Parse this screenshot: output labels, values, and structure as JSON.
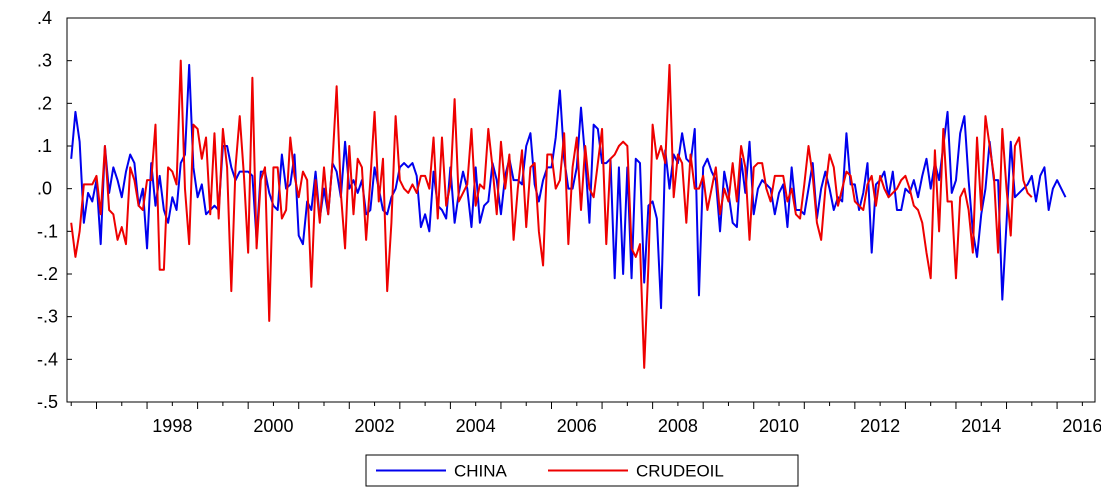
{
  "chart_data": {
    "type": "line",
    "title": "",
    "xlabel": "",
    "ylabel": "",
    "x_start": "1996-07",
    "x_end": "2016-09",
    "x_frequency": "monthly",
    "xlim": [
      "1996-06",
      "2016-10"
    ],
    "ylim": [
      -0.5,
      0.4
    ],
    "y_ticks": [
      0.4,
      0.3,
      0.2,
      0.1,
      0.0,
      -0.1,
      -0.2,
      -0.3,
      -0.4,
      -0.5
    ],
    "y_tick_labels": [
      ".4",
      ".3",
      ".2",
      ".1",
      ".0",
      "-.1",
      "-.2",
      "-.3",
      "-.4",
      "-.5"
    ],
    "x_tick_labels": [
      "1998",
      "2000",
      "2002",
      "2004",
      "2006",
      "2008",
      "2010",
      "2012",
      "2014",
      "2016"
    ],
    "x_tick_years": [
      1998,
      2000,
      2002,
      2004,
      2006,
      2008,
      2010,
      2012,
      2014,
      2016
    ],
    "grid": false,
    "legend_position": "bottom-center",
    "series": [
      {
        "name": "CHINA",
        "color": "#0000ee",
        "values": [
          0.07,
          0.18,
          0.11,
          -0.08,
          -0.01,
          -0.03,
          0.02,
          -0.13,
          0.1,
          -0.01,
          0.05,
          0.02,
          -0.02,
          0.04,
          0.08,
          0.06,
          -0.04,
          0.0,
          -0.14,
          0.06,
          -0.04,
          0.03,
          -0.05,
          -0.08,
          -0.02,
          -0.05,
          0.06,
          0.08,
          0.29,
          0.05,
          -0.02,
          0.01,
          -0.06,
          -0.05,
          -0.04,
          -0.05,
          0.1,
          0.1,
          0.05,
          0.02,
          0.04,
          0.04,
          0.04,
          0.03,
          -0.12,
          0.04,
          0.04,
          -0.01,
          -0.04,
          -0.05,
          0.08,
          0.0,
          0.01,
          0.08,
          -0.11,
          -0.13,
          -0.03,
          -0.05,
          0.04,
          -0.07,
          0.0,
          -0.06,
          0.06,
          0.04,
          -0.02,
          0.11,
          0.0,
          0.02,
          -0.01,
          0.02,
          -0.06,
          -0.05,
          0.05,
          0.0,
          -0.05,
          -0.06,
          -0.02,
          0.0,
          0.05,
          0.06,
          0.05,
          0.06,
          0.03,
          -0.09,
          -0.06,
          -0.1,
          0.04,
          -0.04,
          -0.05,
          -0.07,
          0.05,
          -0.08,
          -0.01,
          0.04,
          0.0,
          -0.09,
          0.05,
          -0.08,
          -0.04,
          -0.03,
          0.06,
          0.02,
          -0.06,
          0.03,
          0.07,
          0.02,
          0.02,
          0.01,
          0.1,
          0.13,
          0.01,
          -0.03,
          0.02,
          0.05,
          0.05,
          0.12,
          0.23,
          0.07,
          0.0,
          0.0,
          0.05,
          0.19,
          0.07,
          -0.08,
          0.15,
          0.14,
          0.06,
          0.06,
          0.07,
          -0.21,
          0.05,
          -0.2,
          0.05,
          -0.21,
          0.07,
          0.06,
          -0.22,
          -0.04,
          -0.03,
          -0.07,
          -0.28,
          0.09,
          0.0,
          0.08,
          0.06,
          0.13,
          0.07,
          0.06,
          0.14,
          -0.25,
          0.05,
          0.07,
          0.04,
          0.02,
          -0.1,
          0.04,
          -0.01,
          -0.08,
          -0.09,
          0.07,
          -0.01,
          0.11,
          -0.06,
          0.0,
          0.02,
          0.01,
          0.0,
          -0.06,
          -0.01,
          0.01,
          -0.09,
          0.05,
          -0.05,
          -0.05,
          -0.06,
          0.0,
          0.06,
          -0.07,
          0.0,
          0.04,
          0.0,
          -0.05,
          -0.02,
          -0.03,
          0.13,
          0.01,
          0.01,
          -0.05,
          -0.01,
          0.06,
          -0.15,
          0.01,
          0.02,
          0.04,
          -0.02,
          0.04,
          -0.05,
          -0.05,
          0.0,
          -0.01,
          0.02,
          -0.02,
          0.03,
          0.07,
          0.0,
          0.06,
          0.02,
          0.1,
          0.18,
          -0.01,
          0.02,
          0.13,
          0.17,
          0.02,
          -0.1,
          -0.16,
          -0.06,
          0.0,
          0.11,
          0.02,
          0.02,
          -0.26,
          -0.08,
          0.11,
          -0.02,
          -0.01,
          0.0,
          0.01,
          0.03,
          -0.03,
          0.03,
          0.05,
          -0.05,
          0.0,
          0.02,
          0.0,
          -0.02
        ]
      },
      {
        "name": "CRUDEOIL",
        "color": "#ee0000",
        "values": [
          -0.08,
          -0.16,
          -0.1,
          0.01,
          0.01,
          0.01,
          0.03,
          -0.06,
          0.1,
          -0.05,
          -0.06,
          -0.12,
          -0.09,
          -0.13,
          0.05,
          0.02,
          -0.04,
          -0.05,
          0.02,
          0.02,
          0.15,
          -0.19,
          -0.19,
          0.05,
          0.04,
          0.01,
          0.3,
          0.0,
          -0.13,
          0.15,
          0.14,
          0.07,
          0.12,
          -0.06,
          0.13,
          -0.07,
          0.14,
          0.05,
          -0.24,
          0.05,
          0.17,
          0.03,
          -0.15,
          0.26,
          -0.14,
          0.02,
          0.05,
          -0.31,
          0.05,
          0.05,
          -0.07,
          -0.05,
          0.12,
          0.03,
          -0.02,
          0.04,
          0.02,
          -0.23,
          0.02,
          -0.08,
          0.05,
          -0.06,
          0.06,
          0.24,
          -0.01,
          -0.14,
          0.1,
          -0.06,
          0.07,
          0.05,
          -0.12,
          0.02,
          0.18,
          -0.03,
          0.07,
          -0.24,
          -0.08,
          0.17,
          0.02,
          0.0,
          -0.01,
          0.01,
          -0.01,
          0.03,
          0.03,
          0.0,
          0.12,
          -0.07,
          0.12,
          -0.04,
          0.01,
          0.21,
          -0.03,
          -0.01,
          0.01,
          0.14,
          -0.04,
          0.01,
          0.0,
          0.14,
          0.05,
          -0.06,
          0.11,
          0.0,
          0.08,
          -0.12,
          0.0,
          0.09,
          -0.09,
          0.05,
          0.06,
          -0.1,
          -0.18,
          0.08,
          0.08,
          0.0,
          0.02,
          0.13,
          -0.13,
          0.05,
          0.12,
          -0.05,
          0.1,
          0.0,
          -0.02,
          0.06,
          0.14,
          -0.13,
          0.07,
          0.08,
          0.1,
          0.11,
          0.1,
          -0.14,
          -0.16,
          -0.13,
          -0.42,
          -0.18,
          0.15,
          0.07,
          0.1,
          0.06,
          0.29,
          -0.02,
          0.08,
          0.06,
          -0.08,
          0.08,
          0.0,
          0.0,
          0.03,
          -0.05,
          0.0,
          0.05,
          -0.06,
          0.0,
          -0.03,
          0.06,
          -0.03,
          0.1,
          0.05,
          -0.12,
          0.05,
          0.06,
          0.06,
          0.0,
          -0.03,
          0.03,
          0.03,
          0.03,
          -0.03,
          0.0,
          -0.06,
          -0.07,
          0.01,
          0.1,
          0.03,
          -0.08,
          -0.12,
          0.0,
          0.08,
          0.05,
          -0.04,
          0.0,
          0.04,
          0.03,
          -0.03,
          -0.04,
          -0.05,
          0.01,
          0.03,
          -0.04,
          0.03,
          0.0,
          -0.02,
          -0.01,
          0.0,
          0.02,
          0.03,
          0.0,
          -0.04,
          -0.05,
          -0.08,
          -0.15,
          -0.21,
          0.09,
          -0.1,
          0.14,
          -0.03,
          -0.03,
          -0.21,
          -0.02,
          0.0,
          -0.05,
          -0.15,
          0.12,
          -0.05,
          0.17,
          0.1,
          0.03,
          -0.15,
          0.14,
          0.0,
          -0.11,
          0.1,
          0.12,
          0.02,
          -0.01,
          -0.02
        ]
      }
    ]
  }
}
